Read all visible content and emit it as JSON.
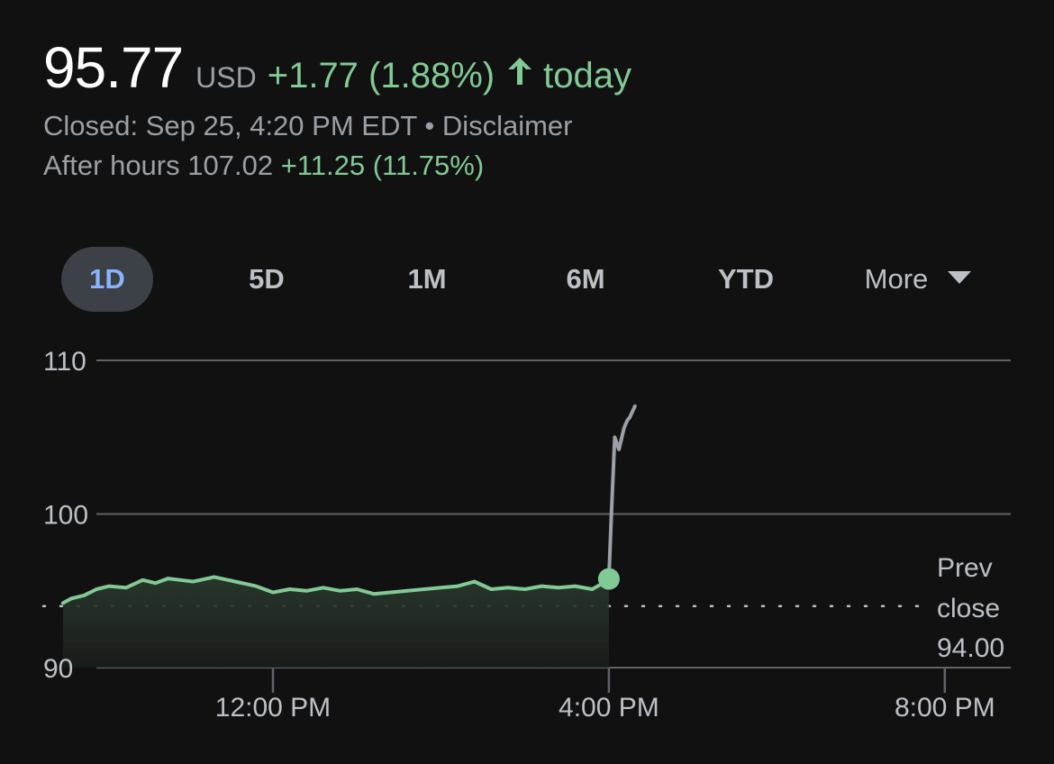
{
  "quote": {
    "price": "95.77",
    "currency": "USD",
    "change": "+1.77 (1.88%)",
    "period": "today",
    "status": "Closed: Sep 25, 4:20 PM EDT",
    "separator": "•",
    "disclaimer": "Disclaimer",
    "after_hours_label": "After hours",
    "after_hours_price": "107.02",
    "after_hours_change": "+11.25 (11.75%)"
  },
  "tabs": [
    {
      "label": "1D",
      "active": true
    },
    {
      "label": "5D",
      "active": false
    },
    {
      "label": "1M",
      "active": false
    },
    {
      "label": "6M",
      "active": false
    },
    {
      "label": "YTD",
      "active": false
    },
    {
      "label": "More",
      "active": false
    }
  ],
  "colors": {
    "positive": "#81c995",
    "after_hours_line": "#9aa0a6",
    "active_tab_text": "#8ab4f8",
    "active_tab_bg": "#3c4047",
    "background": "#111111"
  },
  "icons": {
    "change_arrow": "arrow-up-icon",
    "more_caret": "caret-down-icon"
  },
  "chart_data": {
    "type": "line",
    "y_ticks": [
      "110",
      "100",
      "90"
    ],
    "x_ticks": [
      "12:00 PM",
      "4:00 PM",
      "8:00 PM"
    ],
    "ylim": [
      90,
      110
    ],
    "xlim_hours": [
      8.75,
      21.3
    ],
    "x_tick_hours": [
      12,
      16,
      20
    ],
    "reference_line": {
      "label_lines": [
        "Prev",
        "close"
      ],
      "value_label": "94.00",
      "value": 94.0
    },
    "grid": true,
    "series": [
      {
        "segment": "regular",
        "x_hours": [
          9.5,
          9.6,
          9.75,
          9.9,
          10.05,
          10.25,
          10.45,
          10.6,
          10.75,
          10.9,
          11.05,
          11.3,
          11.55,
          11.8,
          12.0,
          12.2,
          12.4,
          12.6,
          12.8,
          13.0,
          13.2,
          13.4,
          13.6,
          13.8,
          14.0,
          14.2,
          14.4,
          14.6,
          14.8,
          15.0,
          15.2,
          15.4,
          15.6,
          15.8,
          15.9,
          16.0
        ],
        "y": [
          94.2,
          94.5,
          94.7,
          95.1,
          95.3,
          95.2,
          95.7,
          95.5,
          95.8,
          95.7,
          95.6,
          95.9,
          95.6,
          95.3,
          94.9,
          95.1,
          95.0,
          95.2,
          95.0,
          95.1,
          94.8,
          94.9,
          95.0,
          95.1,
          95.2,
          95.3,
          95.6,
          95.1,
          95.2,
          95.1,
          95.3,
          95.2,
          95.3,
          95.1,
          95.4,
          95.77
        ]
      },
      {
        "segment": "after_hours",
        "x_hours": [
          16.0,
          16.03,
          16.07,
          16.12,
          16.18,
          16.22,
          16.25,
          16.31
        ],
        "y": [
          95.77,
          100.0,
          105.0,
          104.2,
          105.6,
          106.1,
          106.3,
          107.02
        ]
      }
    ]
  }
}
